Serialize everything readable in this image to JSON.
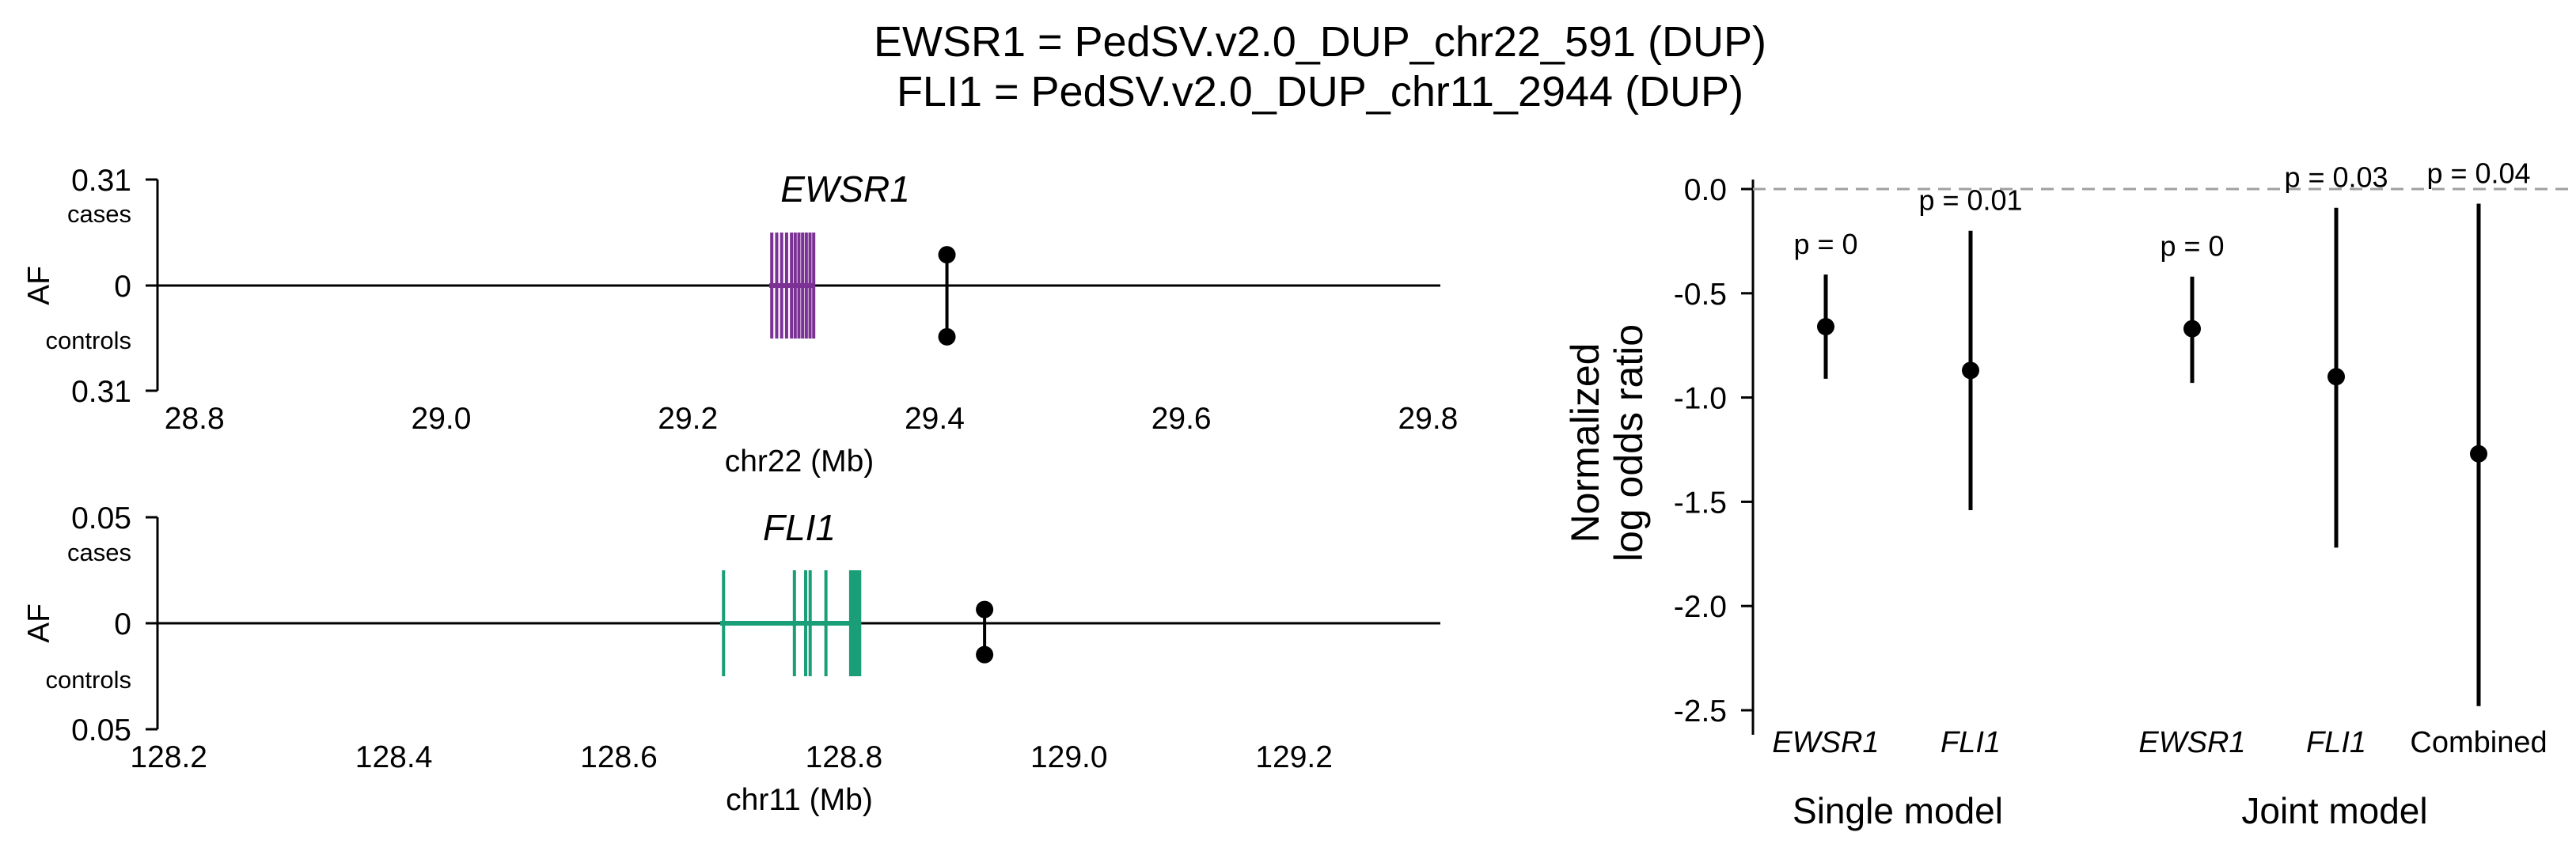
{
  "title_line1": "EWSR1 = PedSV.v2.0_DUP_chr22_591 (DUP)",
  "title_line2": "FLI1 = PedSV.v2.0_DUP_chr11_2944 (DUP)",
  "chart_data": [
    {
      "type": "locus",
      "gene": "EWSR1",
      "xlabel": "chr22 (Mb)",
      "ylabel": "AF",
      "xlim": [
        28.77,
        29.81
      ],
      "xticks": [
        28.8,
        29.0,
        29.2,
        29.4,
        29.6,
        29.8
      ],
      "xtick_labels": [
        "28.8",
        "29.0",
        "29.2",
        "29.4",
        "29.6",
        "29.8"
      ],
      "ytick_labels": [
        "0.31",
        "0",
        "0.31"
      ],
      "cases_label": "cases",
      "controls_label": "controls",
      "gene_color": "#7b3294",
      "exons": [
        29.268,
        29.272,
        29.276,
        29.28,
        29.284,
        29.287,
        29.29,
        29.293,
        29.296,
        29.299,
        29.302
      ],
      "gene_span": [
        29.266,
        29.303
      ],
      "sv_position": 29.41,
      "af_cases": 0.09,
      "af_controls": 0.15
    },
    {
      "type": "locus",
      "gene": "FLI1",
      "xlabel": "chr11 (Mb)",
      "ylabel": "AF",
      "xlim": [
        128.19,
        129.33
      ],
      "xticks": [
        128.2,
        128.4,
        128.6,
        128.8,
        129.0,
        129.2
      ],
      "xtick_labels": [
        "128.2",
        "128.4",
        "128.6",
        "128.8",
        "129.0",
        "129.2"
      ],
      "ytick_labels": [
        "0.05",
        "0",
        "0.05"
      ],
      "cases_label": "cases",
      "controls_label": "controls",
      "gene_color": "#1a9e77",
      "exons": [
        128.693,
        128.756,
        128.766,
        128.77,
        128.784,
        128.806,
        128.808,
        128.81,
        128.812,
        128.814
      ],
      "gene_span": [
        128.69,
        128.815
      ],
      "sv_position": 128.925,
      "af_cases": 0.0065,
      "af_controls": 0.0148
    },
    {
      "type": "forest",
      "ylabel_line1": "Normalized",
      "ylabel_line2": "log odds ratio",
      "ylim": [
        -2.55,
        0.05
      ],
      "yticks": [
        0.0,
        -0.5,
        -1.0,
        -1.5,
        -2.0,
        -2.5
      ],
      "ytick_labels": [
        "0.0",
        "-0.5",
        "-1.0",
        "-1.5",
        "-2.0",
        "-2.5"
      ],
      "reference_line": 0.0,
      "points": [
        {
          "label": "EWSR1",
          "italic": true,
          "estimate": -0.66,
          "ci": [
            -0.91,
            -0.41
          ],
          "p_label": "p = 0"
        },
        {
          "label": "FLI1",
          "italic": true,
          "estimate": -0.87,
          "ci": [
            -1.54,
            -0.2
          ],
          "p_label": "p = 0.01"
        },
        {
          "label": "EWSR1",
          "italic": true,
          "estimate": -0.67,
          "ci": [
            -0.93,
            -0.42
          ],
          "p_label": "p = 0"
        },
        {
          "label": "FLI1",
          "italic": true,
          "estimate": -0.9,
          "ci": [
            -1.72,
            -0.09
          ],
          "p_label": "p = 0.03"
        },
        {
          "label": "Combined",
          "italic": false,
          "estimate": -1.27,
          "ci": [
            -2.48,
            -0.07
          ],
          "p_label": "p = 0.04"
        }
      ],
      "groups": [
        {
          "label": "Single model"
        },
        {
          "label": "Joint model"
        }
      ]
    }
  ]
}
